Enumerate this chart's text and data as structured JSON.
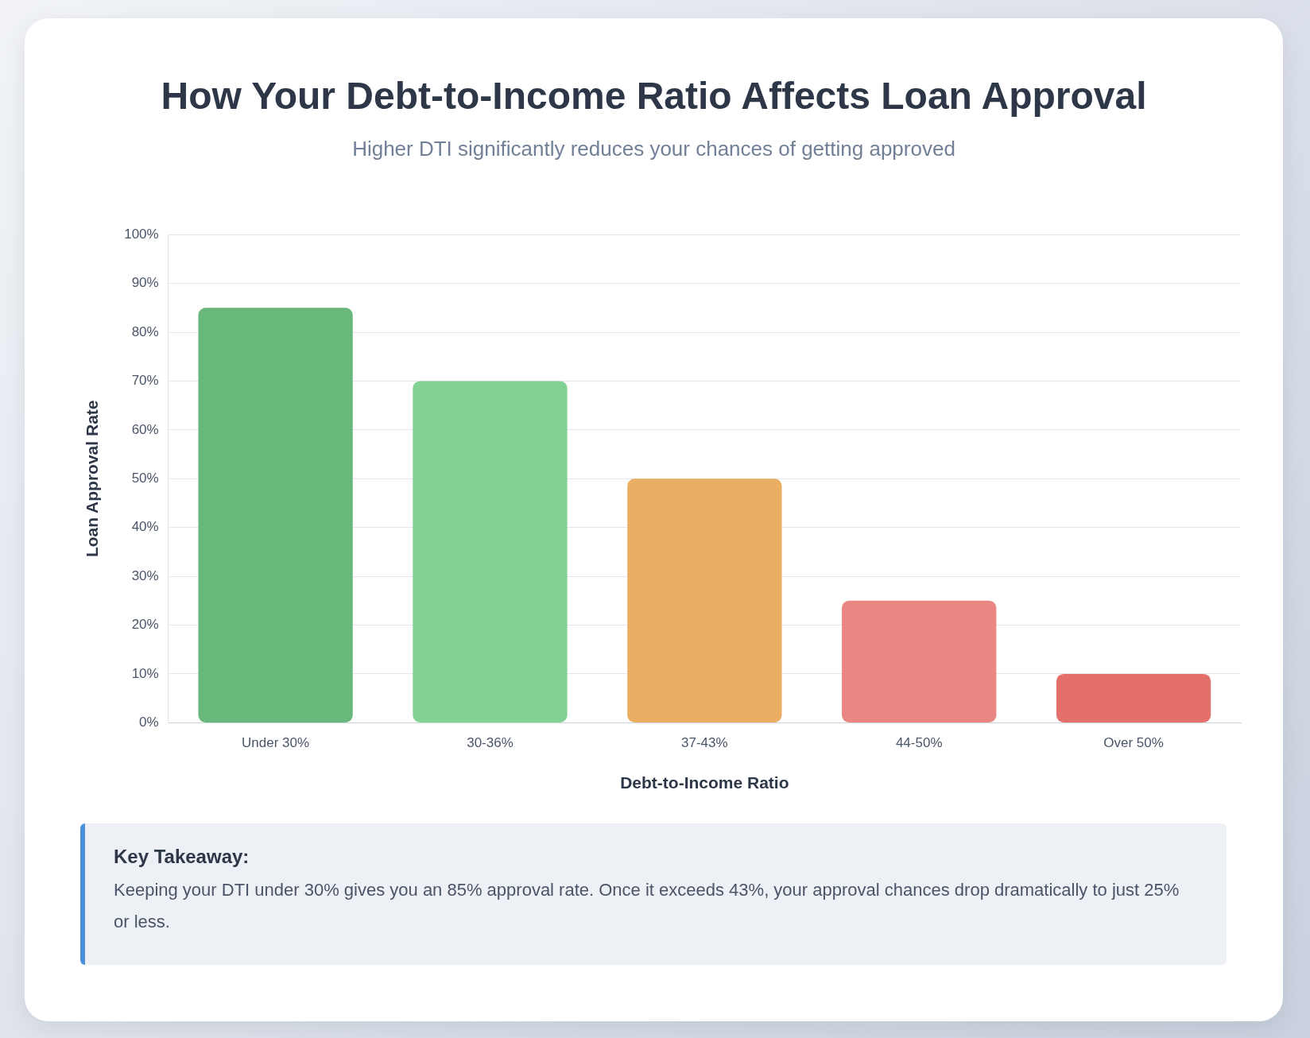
{
  "chart_data": {
    "type": "bar",
    "title": "How Your Debt-to-Income Ratio Affects Loan Approval",
    "subtitle": "Higher DTI significantly reduces your chances of getting approved",
    "xlabel": "Debt-to-Income Ratio",
    "ylabel": "Loan Approval Rate",
    "categories": [
      "Under 30%",
      "30-36%",
      "37-43%",
      "44-50%",
      "Over 50%"
    ],
    "values": [
      85,
      70,
      50,
      25,
      10
    ],
    "colors": [
      "#68b87b",
      "#84d194",
      "#eaaf63",
      "#eb8782",
      "#e4706b"
    ],
    "ylim": [
      0,
      100
    ],
    "yticks": [
      {
        "value": 0,
        "label": "0%"
      },
      {
        "value": 10,
        "label": "10%"
      },
      {
        "value": 20,
        "label": "20%"
      },
      {
        "value": 30,
        "label": "30%"
      },
      {
        "value": 40,
        "label": "40%"
      },
      {
        "value": 50,
        "label": "50%"
      },
      {
        "value": 60,
        "label": "60%"
      },
      {
        "value": 70,
        "label": "70%"
      },
      {
        "value": 80,
        "label": "80%"
      },
      {
        "value": 90,
        "label": "90%"
      },
      {
        "value": 100,
        "label": "100%"
      }
    ],
    "grid": "y",
    "legend": false,
    "annotations": [
      "Key Takeaway:",
      "Keeping your DTI under 30% gives you an 85% approval rate. Once it exceeds 43%, your approval chances drop dramatically to just 25% or less."
    ]
  }
}
